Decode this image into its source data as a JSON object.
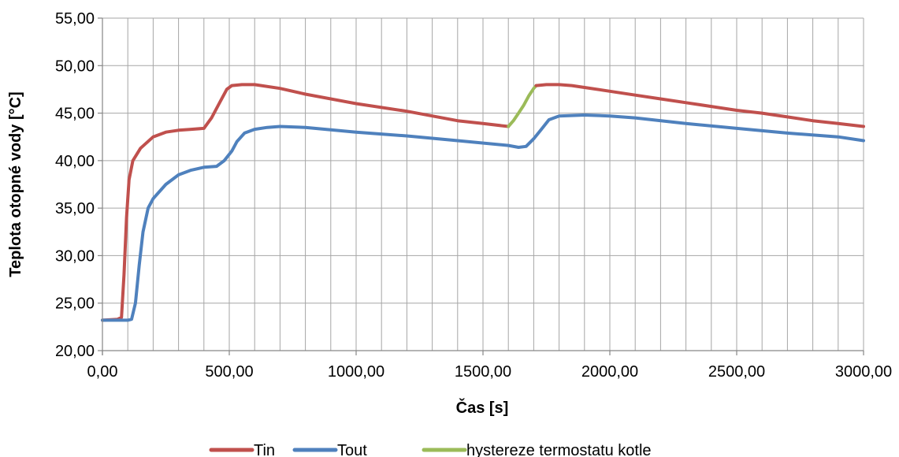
{
  "chart_data": {
    "type": "line",
    "title": "",
    "xlabel": "Čas [s]",
    "ylabel": "Teplota otopné vody [°C]",
    "xlim": [
      0,
      3000
    ],
    "ylim": [
      20,
      55
    ],
    "x_ticks": [
      0,
      500,
      1000,
      1500,
      2000,
      2500,
      3000
    ],
    "x_tick_labels": [
      "0,00",
      "500,00",
      "1000,00",
      "1500,00",
      "2000,00",
      "2500,00",
      "3000,00"
    ],
    "y_ticks": [
      20,
      25,
      30,
      35,
      40,
      45,
      50,
      55
    ],
    "y_tick_labels": [
      "20,00",
      "25,00",
      "30,00",
      "35,00",
      "40,00",
      "45,00",
      "50,00",
      "55,00"
    ],
    "grid": true,
    "legend_position": "bottom",
    "series": [
      {
        "name": "Tin",
        "color": "#c0504d",
        "x": [
          0,
          60,
          75,
          85,
          95,
          105,
          120,
          150,
          200,
          250,
          300,
          350,
          400,
          430,
          460,
          490,
          510,
          550,
          600,
          700,
          800,
          1000,
          1200,
          1400,
          1500,
          1600
        ],
        "y": [
          23.2,
          23.3,
          23.5,
          28.0,
          34.0,
          38.0,
          40.0,
          41.3,
          42.5,
          43.0,
          43.2,
          43.3,
          43.4,
          44.5,
          46.0,
          47.5,
          47.9,
          48.0,
          48.0,
          47.6,
          47.0,
          46.0,
          45.2,
          44.2,
          43.9,
          43.6
        ]
      },
      {
        "name": "Tout",
        "color": "#4f81bd",
        "x": [
          0,
          50,
          100,
          115,
          130,
          145,
          160,
          180,
          200,
          250,
          300,
          350,
          400,
          450,
          480,
          510,
          530,
          560,
          600,
          650,
          700,
          800,
          1000,
          1200,
          1400,
          1600,
          1640,
          1670,
          1700,
          1730,
          1760,
          1800,
          1900,
          2000,
          2100,
          2300,
          2500,
          2700,
          2900,
          3000
        ],
        "y": [
          23.2,
          23.2,
          23.2,
          23.3,
          25.0,
          29.0,
          32.5,
          35.0,
          36.0,
          37.5,
          38.5,
          39.0,
          39.3,
          39.4,
          40.0,
          41.0,
          42.0,
          42.9,
          43.3,
          43.5,
          43.6,
          43.5,
          43.0,
          42.6,
          42.1,
          41.6,
          41.4,
          41.5,
          42.3,
          43.3,
          44.3,
          44.7,
          44.8,
          44.7,
          44.5,
          43.9,
          43.4,
          42.9,
          42.5,
          42.1
        ]
      },
      {
        "name": "hystereze termostatu kotle",
        "color": "#9bbb59",
        "x": [
          1600,
          1620,
          1640,
          1660,
          1680,
          1700,
          1710
        ],
        "y": [
          43.6,
          44.2,
          45.0,
          45.8,
          46.8,
          47.6,
          47.9
        ]
      },
      {
        "name": "",
        "color": "#c0504d",
        "legend": false,
        "x": [
          1710,
          1750,
          1800,
          1850,
          1900,
          2000,
          2100,
          2200,
          2300,
          2400,
          2500,
          2600,
          2700,
          2800,
          2900,
          3000
        ],
        "y": [
          47.9,
          48.0,
          48.0,
          47.9,
          47.7,
          47.3,
          46.9,
          46.5,
          46.1,
          45.7,
          45.3,
          45.0,
          44.6,
          44.2,
          43.9,
          43.6
        ]
      }
    ]
  }
}
